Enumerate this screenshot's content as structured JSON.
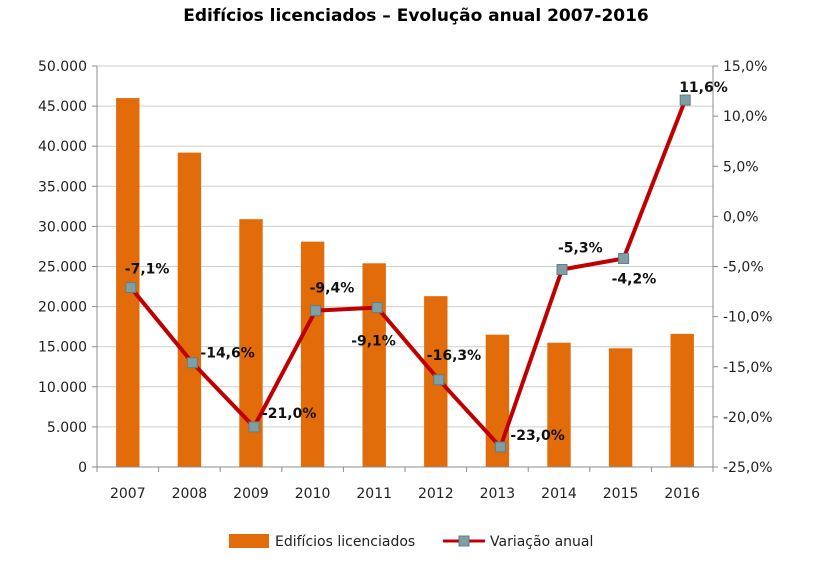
{
  "chart_data": {
    "type": "bar+line",
    "title": "Edifícios licenciados – Evolução anual 2007-2016",
    "categories": [
      "2007",
      "2008",
      "2009",
      "2010",
      "2011",
      "2012",
      "2013",
      "2014",
      "2015",
      "2016"
    ],
    "series": [
      {
        "name": "Edifícios licenciados",
        "type": "bar",
        "axis": "left",
        "color": "#E36C0A",
        "values": [
          46000,
          39200,
          30900,
          28100,
          25400,
          21300,
          16500,
          15500,
          14800,
          16600
        ]
      },
      {
        "name": "Variação anual",
        "type": "line",
        "axis": "right",
        "color": "#C00000",
        "marker_color": "#7F9FA6",
        "values": [
          -7.1,
          -14.6,
          -21.0,
          -9.4,
          -9.1,
          -16.3,
          -23.0,
          -5.3,
          -4.2,
          11.6
        ],
        "labels": [
          "-7,1%",
          "-14,6%",
          "-21,0%",
          "-9,4%",
          "-9,1%",
          "-16,3%",
          "-23,0%",
          "-5,3%",
          "-4,2%",
          "11,6%"
        ]
      }
    ],
    "y_left": {
      "min": 0,
      "max": 50000,
      "ticks": [
        0,
        5000,
        10000,
        15000,
        20000,
        25000,
        30000,
        35000,
        40000,
        45000,
        50000
      ],
      "tick_labels": [
        "0",
        "5.000",
        "10.000",
        "15.000",
        "20.000",
        "25.000",
        "30.000",
        "35.000",
        "40.000",
        "45.000",
        "50.000"
      ]
    },
    "y_right": {
      "min": -25,
      "max": 15,
      "ticks": [
        -25,
        -20,
        -15,
        -10,
        -5,
        0,
        5,
        10,
        15
      ],
      "tick_labels": [
        "-25,0%",
        "-20,0%",
        "-15,0%",
        "-10,0%",
        "-5,0%",
        "0,0%",
        "5,0%",
        "10,0%",
        "15,0%"
      ]
    },
    "grid": true,
    "legend_position": "bottom",
    "legend": [
      "Edifícios licenciados",
      "Variação anual"
    ]
  }
}
